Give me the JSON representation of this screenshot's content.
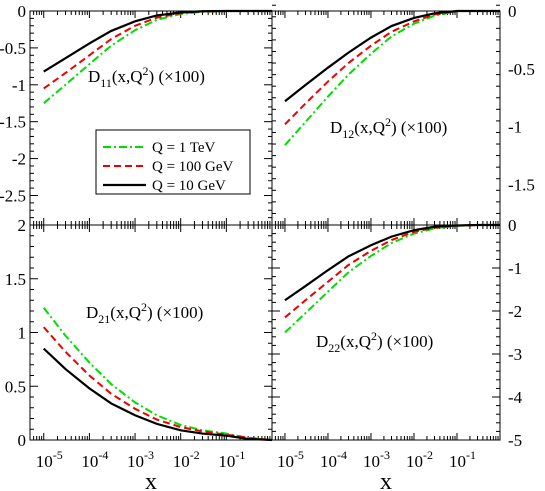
{
  "figure": {
    "xlabel": "x",
    "legend": [
      {
        "label": "Q = 1 TeV",
        "color": "#00dd00",
        "dash": "dashdot"
      },
      {
        "label": "Q = 100 GeV",
        "color": "#ee0000",
        "dash": "dash"
      },
      {
        "label": "Q = 10 GeV",
        "color": "#000000",
        "dash": "solid"
      }
    ],
    "legend_panel": "D11",
    "legend_position": "lower-center"
  },
  "chart_data": [
    {
      "id": "D11",
      "type": "line",
      "title_main": "D",
      "title_sub": "11",
      "title_arg": "(x,Q",
      "title_sup": "2",
      "title_tail": ")  (×100)",
      "x_scale": "log",
      "xlim": [
        5e-06,
        1
      ],
      "ylim": [
        -2.9,
        0
      ],
      "yticks": [
        0,
        -0.5,
        -1,
        -1.5,
        -2,
        -2.5
      ],
      "ytick_labels": [
        "0",
        "-0.5",
        "-1",
        "-1.5",
        "-2",
        "-2.5"
      ],
      "ytick_side": "left",
      "x": [
        1e-05,
        3e-05,
        0.0001,
        0.0003,
        0.001,
        0.003,
        0.01,
        0.03,
        0.1,
        0.3,
        1
      ],
      "series": [
        {
          "name": "Q = 1 TeV",
          "values": [
            -1.25,
            -1.0,
            -0.72,
            -0.47,
            -0.26,
            -0.12,
            -0.04,
            -0.01,
            0.0,
            0.0,
            0.0
          ]
        },
        {
          "name": "Q = 100 GeV",
          "values": [
            -1.05,
            -0.84,
            -0.6,
            -0.38,
            -0.2,
            -0.09,
            -0.03,
            -0.006,
            0.0,
            0.0,
            0.0
          ]
        },
        {
          "name": "Q = 10 GeV",
          "values": [
            -0.82,
            -0.64,
            -0.44,
            -0.27,
            -0.14,
            -0.06,
            -0.02,
            -0.003,
            0.0,
            0.0,
            0.0
          ]
        }
      ]
    },
    {
      "id": "D12",
      "type": "line",
      "title_main": "D",
      "title_sub": "12",
      "title_arg": "(x,Q",
      "title_sup": "2",
      "title_tail": ") (×100)",
      "x_scale": "log",
      "xlim": [
        5e-06,
        1
      ],
      "ylim": [
        -1.85,
        0
      ],
      "yticks": [
        0,
        -0.5,
        -1,
        -1.5
      ],
      "ytick_labels": [
        "0",
        "-0.5",
        "-1",
        "-1.5"
      ],
      "ytick_side": "right",
      "x": [
        1e-05,
        3e-05,
        0.0001,
        0.0003,
        0.001,
        0.003,
        0.01,
        0.03,
        0.1,
        0.3,
        1
      ],
      "series": [
        {
          "name": "Q = 1 TeV",
          "values": [
            -1.16,
            -0.96,
            -0.74,
            -0.55,
            -0.37,
            -0.22,
            -0.11,
            -0.04,
            0.0,
            0.0,
            0.0
          ]
        },
        {
          "name": "Q = 100 GeV",
          "values": [
            -0.98,
            -0.8,
            -0.61,
            -0.45,
            -0.3,
            -0.18,
            -0.09,
            -0.03,
            0.0,
            0.0,
            0.0
          ]
        },
        {
          "name": "Q = 10 GeV",
          "values": [
            -0.78,
            -0.64,
            -0.49,
            -0.36,
            -0.23,
            -0.13,
            -0.06,
            -0.02,
            0.0,
            0.0,
            0.0
          ]
        }
      ]
    },
    {
      "id": "D21",
      "type": "line",
      "title_main": "D",
      "title_sub": "21",
      "title_arg": "(x,Q",
      "title_sup": "2",
      "title_tail": ") (×100)",
      "x_scale": "log",
      "xlim": [
        5e-06,
        1
      ],
      "ylim": [
        0,
        2
      ],
      "yticks": [
        0,
        0.5,
        1,
        1.5,
        2
      ],
      "ytick_labels": [
        "0",
        "0.5",
        "1",
        "1.5",
        "2"
      ],
      "ytick_side": "left",
      "x": [
        1e-05,
        3e-05,
        0.0001,
        0.0003,
        0.001,
        0.003,
        0.01,
        0.03,
        0.1,
        0.3,
        1
      ],
      "series": [
        {
          "name": "Q = 1 TeV",
          "values": [
            1.23,
            0.97,
            0.72,
            0.52,
            0.35,
            0.23,
            0.14,
            0.09,
            0.06,
            0.02,
            0.0
          ]
        },
        {
          "name": "Q = 100 GeV",
          "values": [
            1.05,
            0.82,
            0.6,
            0.43,
            0.29,
            0.19,
            0.12,
            0.08,
            0.05,
            0.02,
            0.0
          ]
        },
        {
          "name": "Q = 10 GeV",
          "values": [
            0.85,
            0.66,
            0.48,
            0.34,
            0.23,
            0.15,
            0.09,
            0.06,
            0.04,
            0.01,
            0.0
          ]
        }
      ]
    },
    {
      "id": "D22",
      "type": "line",
      "title_main": "D",
      "title_sub": "22",
      "title_arg": "(x,Q",
      "title_sup": "2",
      "title_tail": ") (×100)",
      "x_scale": "log",
      "xlim": [
        5e-06,
        1
      ],
      "ylim": [
        -5,
        0
      ],
      "yticks": [
        0,
        -1,
        -2,
        -3,
        -4,
        -5
      ],
      "ytick_labels": [
        "0",
        "-1",
        "-2",
        "-3",
        "-4",
        "-5"
      ],
      "ytick_side": "right",
      "x": [
        1e-05,
        3e-05,
        0.0001,
        0.0003,
        0.001,
        0.003,
        0.01,
        0.03,
        0.1,
        0.3,
        1
      ],
      "series": [
        {
          "name": "Q = 1 TeV",
          "values": [
            -2.5,
            -2.05,
            -1.55,
            -1.1,
            -0.72,
            -0.42,
            -0.2,
            -0.08,
            -0.02,
            0.0,
            0.0
          ]
        },
        {
          "name": "Q = 100 GeV",
          "values": [
            -2.15,
            -1.75,
            -1.32,
            -0.93,
            -0.6,
            -0.35,
            -0.16,
            -0.06,
            -0.015,
            0.0,
            0.0
          ]
        },
        {
          "name": "Q = 10 GeV",
          "values": [
            -1.75,
            -1.42,
            -1.05,
            -0.73,
            -0.47,
            -0.27,
            -0.12,
            -0.04,
            -0.01,
            0.0,
            0.0
          ]
        }
      ]
    }
  ],
  "x_axis": {
    "tick_exponents": [
      -5,
      -4,
      -3,
      -2,
      -1
    ],
    "tick_base": "10",
    "tick_values": [
      1e-05,
      0.0001,
      0.001,
      0.01,
      0.1
    ]
  }
}
